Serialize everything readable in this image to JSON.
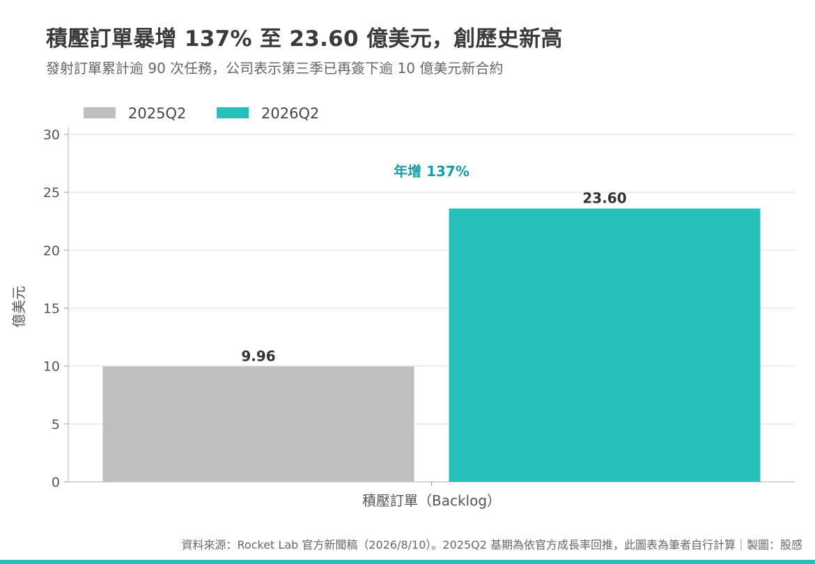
{
  "header": {
    "title": "積壓訂單暴增 137% 至 23.60 億美元，創歷史新高",
    "subtitle": "發射訂單累計逾 90 次任務，公司表示第三季已再簽下逾 10 億美元新合約"
  },
  "footer": {
    "source": "資料來源：Rocket Lab 官方新聞稿（2026/8/10）。2025Q2 基期為依官方成長率回推，此圖表為筆者自行計算｜製圖：股感"
  },
  "colors": {
    "series_2025": "#bfbfbf",
    "series_2026": "#26c0ba",
    "annotation": "#1a9ba6",
    "grid": "#e6e6e6",
    "axis": "#cccccc",
    "bottom_bar": "#26c0ba"
  },
  "chart_data": {
    "type": "bar",
    "categories": [
      "積壓訂單（Backlog）"
    ],
    "series": [
      {
        "name": "2025Q2",
        "values": [
          9.96
        ],
        "data_labels": [
          "9.96"
        ]
      },
      {
        "name": "2026Q2",
        "values": [
          23.6
        ],
        "data_labels": [
          "23.60"
        ]
      }
    ],
    "title": "積壓訂單暴增 137% 至 23.60 億美元，創歷史新高",
    "xlabel": "積壓訂單（Backlog）",
    "ylabel": "億美元",
    "ylim": [
      0,
      30
    ],
    "yticks": [
      0,
      5,
      10,
      15,
      20,
      25,
      30
    ],
    "grid": true,
    "legend_position": "top-left",
    "annotations": [
      {
        "text": "年增 137%",
        "y": 27
      }
    ]
  }
}
